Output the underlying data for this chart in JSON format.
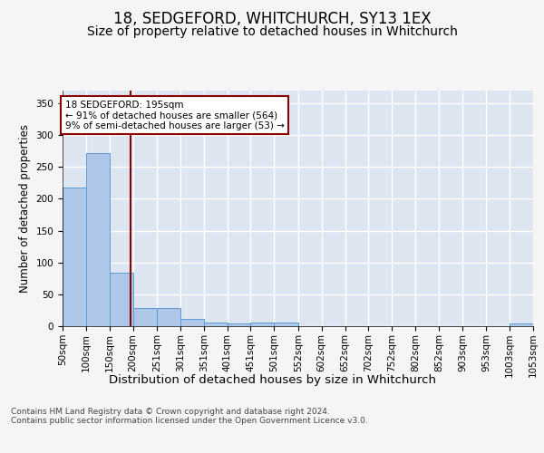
{
  "title": "18, SEDGEFORD, WHITCHURCH, SY13 1EX",
  "subtitle": "Size of property relative to detached houses in Whitchurch",
  "xlabel": "Distribution of detached houses by size in Whitchurch",
  "ylabel": "Number of detached properties",
  "bar_color": "#aec6e8",
  "bar_edge_color": "#5b9bd5",
  "background_color": "#dde6f0",
  "grid_color": "#ffffff",
  "annotation_line_color": "#8b0000",
  "annotation_box_color": "#8b0000",
  "annotation_text": "18 SEDGEFORD: 195sqm\n← 91% of detached houses are smaller (564)\n9% of semi-detached houses are larger (53) →",
  "property_size": 195,
  "bins": [
    50,
    100,
    150,
    200,
    251,
    301,
    351,
    401,
    451,
    501,
    552,
    602,
    652,
    702,
    752,
    802,
    852,
    903,
    953,
    1003,
    1053
  ],
  "bar_heights": [
    218,
    272,
    84,
    29,
    29,
    12,
    5,
    4,
    5,
    5,
    0,
    0,
    0,
    0,
    0,
    0,
    0,
    0,
    0,
    4
  ],
  "tick_labels": [
    "50sqm",
    "100sqm",
    "150sqm",
    "200sqm",
    "251sqm",
    "301sqm",
    "351sqm",
    "401sqm",
    "451sqm",
    "501sqm",
    "552sqm",
    "602sqm",
    "652sqm",
    "702sqm",
    "752sqm",
    "802sqm",
    "852sqm",
    "903sqm",
    "953sqm",
    "1003sqm",
    "1053sqm"
  ],
  "ylim": [
    0,
    370
  ],
  "yticks": [
    0,
    50,
    100,
    150,
    200,
    250,
    300,
    350
  ],
  "footer_text": "Contains HM Land Registry data © Crown copyright and database right 2024.\nContains public sector information licensed under the Open Government Licence v3.0.",
  "title_fontsize": 12,
  "subtitle_fontsize": 10,
  "tick_fontsize": 7.5,
  "ylabel_fontsize": 8.5,
  "xlabel_fontsize": 9.5,
  "footer_fontsize": 6.5
}
